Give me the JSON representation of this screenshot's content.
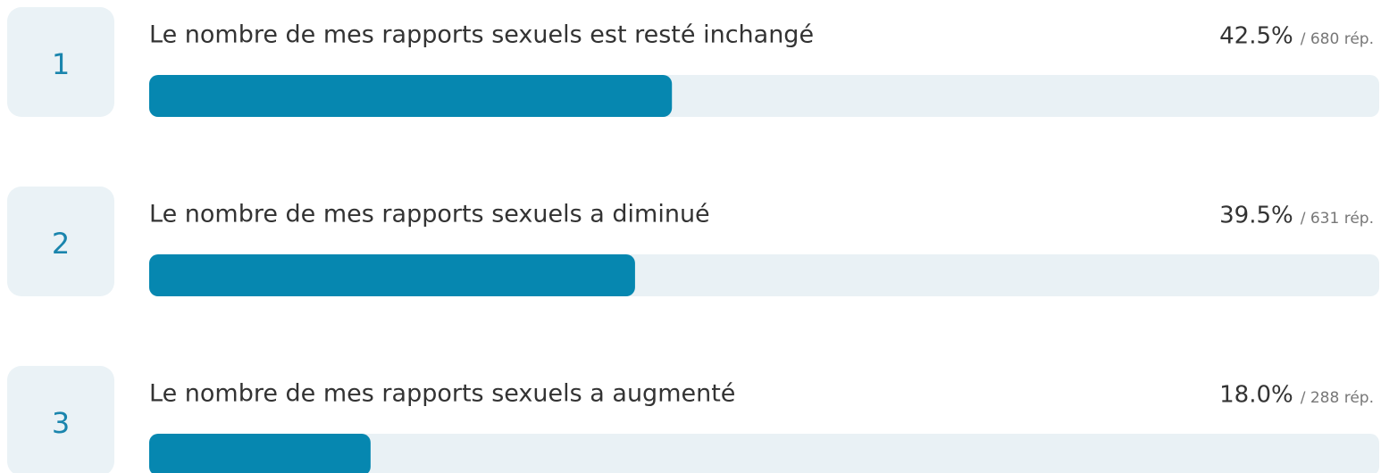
{
  "chart_data": {
    "type": "bar",
    "orientation": "horizontal",
    "ranks": [
      1,
      2,
      3
    ],
    "categories": [
      "Le nombre de mes rapports sexuels est resté inchangé",
      "Le nombre de mes rapports sexuels a diminué",
      "Le nombre de mes rapports sexuels a augmenté"
    ],
    "values": [
      42.5,
      39.5,
      18.0
    ],
    "value_labels": [
      "42.5%",
      "39.5%",
      "18.0%"
    ],
    "response_labels": [
      "/ 680 rép.",
      "/ 631 rép.",
      "/ 288 rép."
    ],
    "xlim": [
      0,
      100
    ],
    "color": "#0687b0",
    "track_color": "#e9f1f5"
  }
}
